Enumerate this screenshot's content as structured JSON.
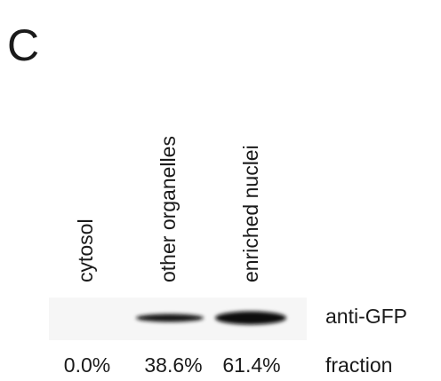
{
  "panel": "C",
  "lanes": [
    "cytosol",
    "other organelles",
    "enriched nuclei"
  ],
  "blot_label": "anti-GFP",
  "fractions": [
    "0.0%",
    "38.6%",
    "61.4%"
  ],
  "fraction_label": "fraction"
}
